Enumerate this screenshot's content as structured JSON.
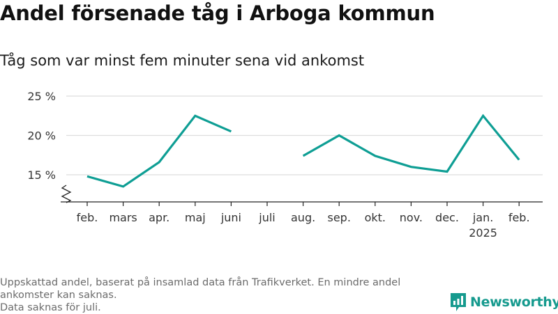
{
  "title": "Andel försenade tåg i Arboga kommun",
  "subtitle": "Tåg som var minst fem minuter sena vid ankomst",
  "chart_data": {
    "type": "line",
    "title": "Andel försenade tåg i Arboga kommun",
    "subtitle": "Tåg som var minst fem minuter sena vid ankomst",
    "categories": [
      "feb.",
      "mars",
      "apr.",
      "maj",
      "juni",
      "juli",
      "aug.",
      "sep.",
      "okt.",
      "nov.",
      "dec.",
      "jan.",
      "feb."
    ],
    "category_sublabels": [
      "",
      "",
      "",
      "",
      "",
      "",
      "",
      "",
      "",
      "",
      "",
      "2025",
      ""
    ],
    "series": [
      {
        "values": [
          14.8,
          13.5,
          16.6,
          22.5,
          20.5,
          null,
          17.4,
          20.0,
          17.4,
          16.0,
          15.4,
          22.5,
          16.9
        ]
      }
    ],
    "y_ticks": [
      15,
      20,
      25
    ],
    "y_tick_labels": [
      "15 %",
      "20 %",
      "25 %"
    ],
    "ylim": [
      12,
      25
    ],
    "y_axis_break": true,
    "grid": true,
    "line_color": "#0e9e94",
    "grid_color": "#dddddd",
    "axis_color": "#222222"
  },
  "footer": {
    "lines": [
      "Uppskattad andel, baserat på insamlad data från Trafikverket. En mindre andel",
      "ankomster kan saknas.",
      "Data saknas för juli."
    ]
  },
  "brand": {
    "name": "Newsworthy",
    "color": "#169a8e",
    "icon": "newsworthy-logo-icon"
  }
}
